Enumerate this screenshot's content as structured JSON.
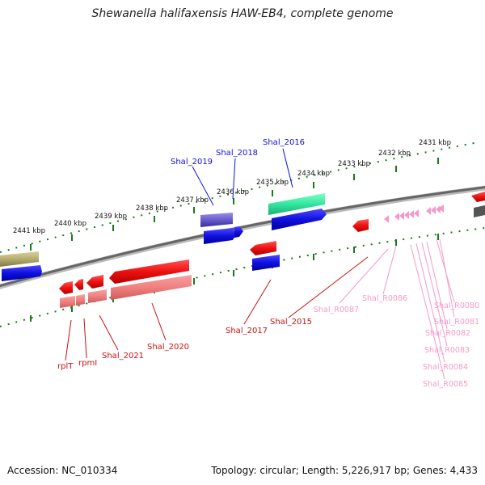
{
  "title": "Shewanella halifaxensis HAW-EB4, complete genome",
  "footer": {
    "accession": "Accession: NC_010334",
    "summary": "Topology: circular; Length: 5,226,917 bp; Genes: 4,433"
  },
  "colors": {
    "backbone": "#777777",
    "ticks": "#1a7a1a",
    "gene_plus": "#1010e0",
    "gene_minus": "#ee1111",
    "cds_pale": "#f08080",
    "rna": "#f49ac8",
    "other_teal": "#33e6a0",
    "other_olive": "#b5ad70",
    "other_purple": "#6a5acd"
  },
  "scale": {
    "unit": "kbp",
    "labels": [
      "2441 kbp",
      "2440 kbp",
      "2439 kbp",
      "2438 kbp",
      "2437 kbp",
      "2436 kbp",
      "2435 kbp",
      "2434 kbp",
      "2433 kbp",
      "2432 kbp",
      "2431 kbp"
    ]
  },
  "labels_plus": [
    "Shal_2019",
    "Shal_2018",
    "Shal_2016"
  ],
  "labels_minus": [
    "rplT",
    "rpmI",
    "Shal_2021",
    "Shal_2020",
    "Shal_2017",
    "Shal_2015"
  ],
  "labels_rna": [
    "Shal_R0087",
    "Shal_R0086",
    "Shal_R0080",
    "Shal_R0081",
    "Shal_R0082",
    "Shal_R0083",
    "Shal_R0084",
    "Shal_R0085"
  ]
}
